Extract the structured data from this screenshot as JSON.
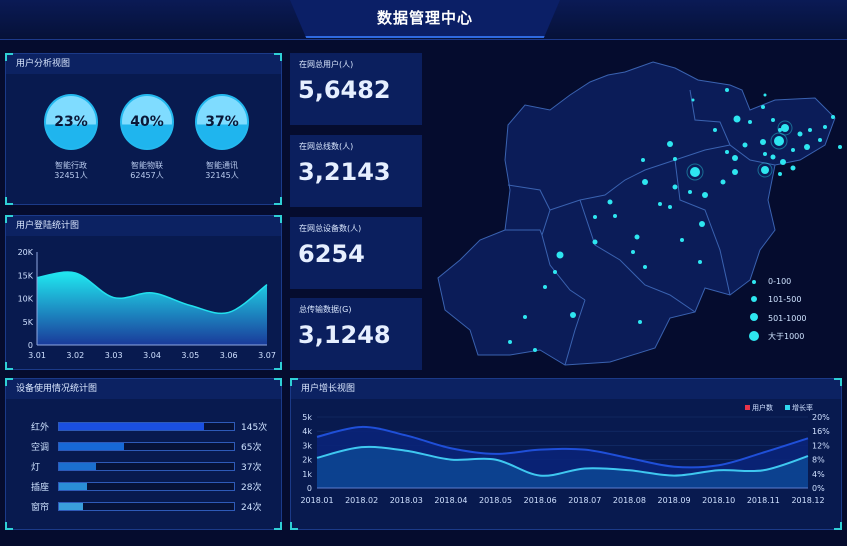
{
  "header": {
    "title": "数据管理中心"
  },
  "user_analysis": {
    "title": "用户分析视图",
    "items": [
      {
        "percent": "23%",
        "name": "智能行政",
        "count": "32451人"
      },
      {
        "percent": "40%",
        "name": "智能物联",
        "count": "62457人"
      },
      {
        "percent": "37%",
        "name": "智能通讯",
        "count": "32145人"
      }
    ]
  },
  "stats": [
    {
      "label": "在网总用户(人)",
      "value": "5,6482"
    },
    {
      "label": "在网总线数(人)",
      "value": "3,2143"
    },
    {
      "label": "在网总设备数(人)",
      "value": "6254"
    },
    {
      "label": "总传输数据(G)",
      "value": "3,1248"
    }
  ],
  "map": {
    "legend": [
      "0-100",
      "101-500",
      "501-1000",
      "大于1000"
    ],
    "dot_color": "#2ee6f0"
  },
  "device_usage": {
    "title": "设备使用情况统计图",
    "max": 175,
    "items": [
      {
        "name": "红外",
        "value": 145,
        "label": "145次",
        "color": "#1a4fe0"
      },
      {
        "name": "空调",
        "value": 65,
        "label": "65次",
        "color": "#1769d6"
      },
      {
        "name": "灯",
        "value": 37,
        "label": "37次",
        "color": "#1b6fcf"
      },
      {
        "name": "插座",
        "value": 28,
        "label": "28次",
        "color": "#2a8ed6"
      },
      {
        "name": "窗帘",
        "value": 24,
        "label": "24次",
        "color": "#3a9edc"
      }
    ]
  },
  "chart_data": [
    {
      "type": "area",
      "title": "用户登陆统计图",
      "categories": [
        "3.01",
        "3.02",
        "3.03",
        "3.04",
        "3.05",
        "3.06",
        "3.07"
      ],
      "values": [
        14500,
        15500,
        10200,
        11200,
        8500,
        7000,
        13000
      ],
      "ylim": [
        0,
        20000
      ],
      "yticks": [
        "0",
        "5K",
        "10K",
        "15K",
        "20K"
      ],
      "color": "#22e0ee"
    },
    {
      "type": "area",
      "title": "用户增长视图",
      "categories": [
        "2018.01",
        "2018.02",
        "2018.03",
        "2018.04",
        "2018.05",
        "2018.06",
        "2018.07",
        "2018.08",
        "2018.09",
        "2018.10",
        "2018.11",
        "2018.12"
      ],
      "ylim_left": [
        0,
        5000
      ],
      "yticks_left": [
        "0",
        "1k",
        "2k",
        "3k",
        "4k",
        "5k"
      ],
      "ylim_right": [
        0,
        20
      ],
      "yticks_right": [
        "0%",
        "4%",
        "8%",
        "12%",
        "16%",
        "20%"
      ],
      "legend_position": "top-right",
      "series": [
        {
          "name": "用户数",
          "axis": "left",
          "values": [
            3600,
            4300,
            3700,
            2800,
            2400,
            2700,
            2700,
            2100,
            1500,
            1600,
            2500,
            3500
          ],
          "legend_color": "#e8344a",
          "line_color": "#1f4fd8"
        },
        {
          "name": "增长率",
          "axis": "right",
          "values": [
            8.5,
            11.5,
            10.5,
            8,
            8,
            3.5,
            5.5,
            5,
            3.5,
            5,
            5,
            9
          ],
          "legend_color": "#2fd6f0",
          "line_color": "#3fc8f0"
        }
      ]
    }
  ]
}
